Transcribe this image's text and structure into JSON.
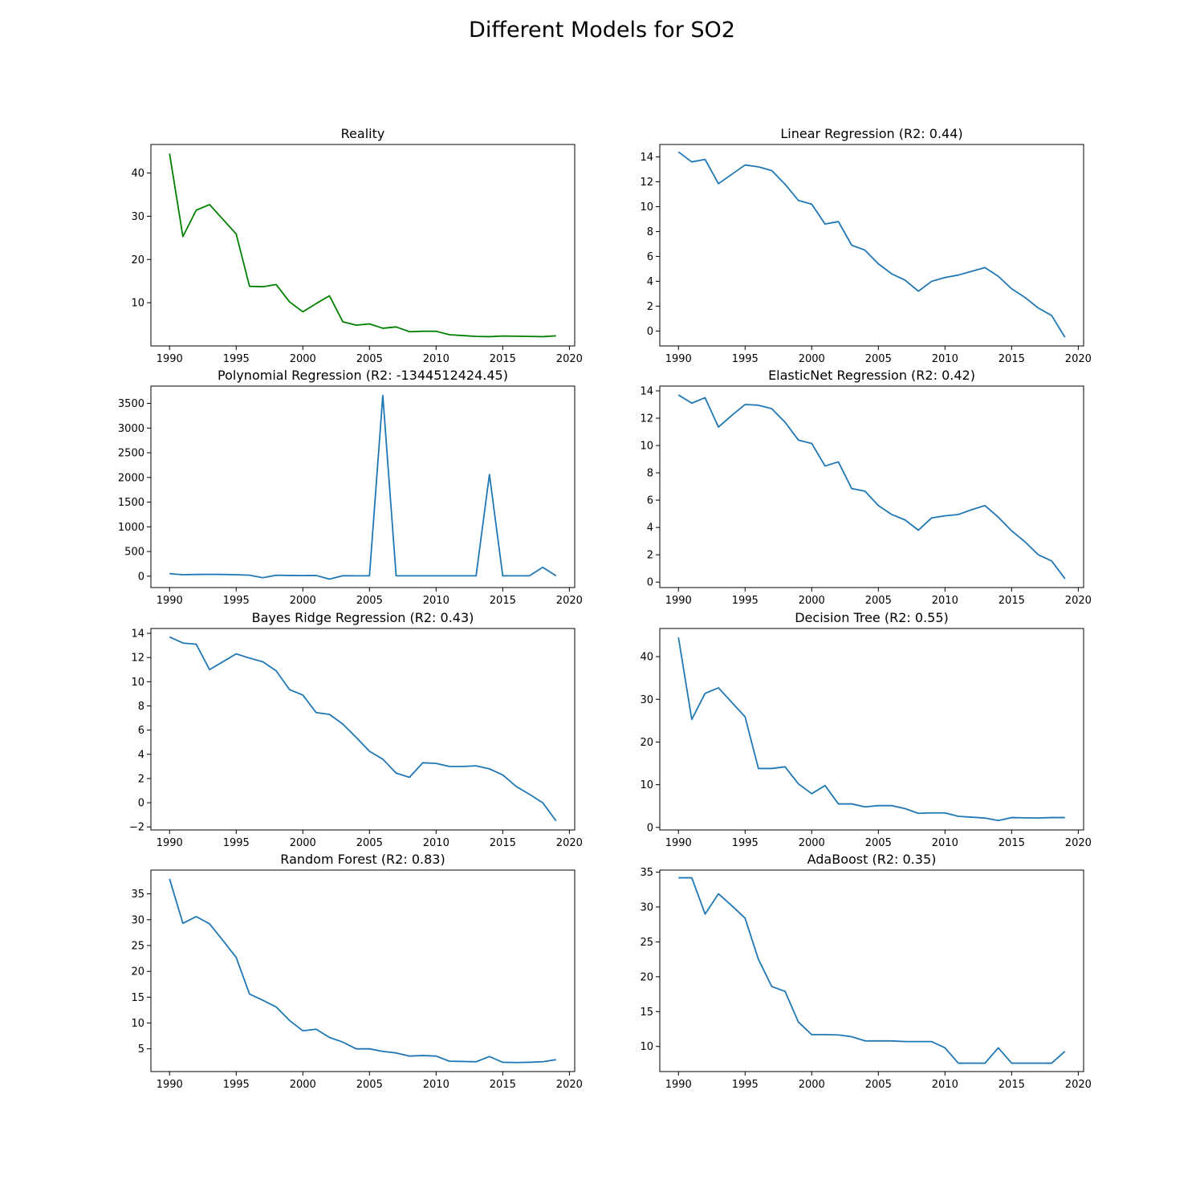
{
  "figure": {
    "title": "Different Models for SO2"
  },
  "chart_data": [
    {
      "type": "line",
      "title": "Reality",
      "color": "#008000",
      "x": [
        1990,
        1991,
        1992,
        1993,
        1994,
        1995,
        1996,
        1997,
        1998,
        1999,
        2000,
        2001,
        2002,
        2003,
        2004,
        2005,
        2006,
        2007,
        2008,
        2009,
        2010,
        2011,
        2012,
        2013,
        2014,
        2015,
        2016,
        2017,
        2018,
        2019
      ],
      "y": [
        44.5,
        25.3,
        31.4,
        32.7,
        29.3,
        25.9,
        13.8,
        13.7,
        14.2,
        10.2,
        7.9,
        9.8,
        11.6,
        5.6,
        4.8,
        5.1,
        4.1,
        4.4,
        3.3,
        3.4,
        3.4,
        2.6,
        2.4,
        2.2,
        2.15,
        2.3,
        2.25,
        2.2,
        2.15,
        2.35
      ],
      "xlim": [
        1988.6,
        2020.4
      ],
      "ylim": [
        0.0,
        46.6
      ],
      "xticks": [
        1990,
        1995,
        2000,
        2005,
        2010,
        2015,
        2020
      ],
      "yticks": [
        10,
        20,
        30,
        40
      ]
    },
    {
      "type": "line",
      "title": "Linear Regression (R2: 0.44)",
      "color": "#1f77b4",
      "x": [
        1990,
        1991,
        1992,
        1993,
        1994,
        1995,
        1996,
        1997,
        1998,
        1999,
        2000,
        2001,
        2002,
        2003,
        2004,
        2005,
        2006,
        2007,
        2008,
        2009,
        2010,
        2011,
        2012,
        2013,
        2014,
        2015,
        2016,
        2017,
        2018,
        2019
      ],
      "y": [
        14.4,
        13.6,
        13.8,
        11.85,
        12.6,
        13.35,
        13.2,
        12.9,
        11.8,
        10.5,
        10.2,
        8.6,
        8.8,
        6.9,
        6.5,
        5.4,
        4.6,
        4.1,
        3.2,
        4.0,
        4.3,
        4.5,
        4.8,
        5.1,
        4.4,
        3.4,
        2.7,
        1.85,
        1.25,
        -0.5
      ],
      "xlim": [
        1988.6,
        2020.4
      ],
      "ylim": [
        -1.2,
        15.0
      ],
      "xticks": [
        1990,
        1995,
        2000,
        2005,
        2010,
        2015,
        2020
      ],
      "yticks": [
        0,
        2,
        4,
        6,
        8,
        10,
        12,
        14
      ]
    },
    {
      "type": "line",
      "title": "Polynomial Regression (R2: -1344512424.45)",
      "color": "#1f77b4",
      "x": [
        1990,
        1991,
        1992,
        1993,
        1994,
        1995,
        1996,
        1997,
        1998,
        1999,
        2000,
        2001,
        2002,
        2003,
        2004,
        2005,
        2006,
        2007,
        2008,
        2009,
        2010,
        2011,
        2012,
        2013,
        2014,
        2015,
        2016,
        2017,
        2018,
        2019
      ],
      "y": [
        50,
        30,
        35,
        38,
        35,
        30,
        20,
        -30,
        20,
        15,
        12,
        15,
        -60,
        10,
        8,
        8,
        3660,
        8,
        8,
        8,
        8,
        8,
        8,
        8,
        2060,
        8,
        8,
        8,
        180,
        8
      ],
      "xlim": [
        1988.6,
        2020.4
      ],
      "ylim": [
        -230,
        3850
      ],
      "xticks": [
        1990,
        1995,
        2000,
        2005,
        2010,
        2015,
        2020
      ],
      "yticks": [
        0,
        500,
        1000,
        1500,
        2000,
        2500,
        3000,
        3500
      ]
    },
    {
      "type": "line",
      "title": "ElasticNet Regression (R2: 0.42)",
      "color": "#1f77b4",
      "x": [
        1990,
        1991,
        1992,
        1993,
        1994,
        1995,
        1996,
        1997,
        1998,
        1999,
        2000,
        2001,
        2002,
        2003,
        2004,
        2005,
        2006,
        2007,
        2008,
        2009,
        2010,
        2011,
        2012,
        2013,
        2014,
        2015,
        2016,
        2017,
        2018,
        2019
      ],
      "y": [
        13.7,
        13.1,
        13.5,
        11.35,
        12.2,
        13.0,
        12.95,
        12.7,
        11.7,
        10.4,
        10.15,
        8.5,
        8.8,
        6.85,
        6.65,
        5.6,
        4.95,
        4.55,
        3.8,
        4.7,
        4.85,
        4.95,
        5.3,
        5.6,
        4.75,
        3.75,
        2.95,
        2.0,
        1.55,
        0.25
      ],
      "xlim": [
        1988.6,
        2020.4
      ],
      "ylim": [
        -0.4,
        14.35
      ],
      "xticks": [
        1990,
        1995,
        2000,
        2005,
        2010,
        2015,
        2020
      ],
      "yticks": [
        0,
        2,
        4,
        6,
        8,
        10,
        12,
        14
      ]
    },
    {
      "type": "line",
      "title": "Bayes Ridge Regression (R2: 0.43)",
      "color": "#1f77b4",
      "x": [
        1990,
        1991,
        1992,
        1993,
        1994,
        1995,
        1996,
        1997,
        1998,
        1999,
        2000,
        2001,
        2002,
        2003,
        2004,
        2005,
        2006,
        2007,
        2008,
        2009,
        2010,
        2011,
        2012,
        2013,
        2014,
        2015,
        2016,
        2017,
        2018,
        2019
      ],
      "y": [
        13.7,
        13.2,
        13.1,
        11.0,
        11.65,
        12.3,
        11.95,
        11.65,
        10.9,
        9.35,
        8.9,
        7.45,
        7.3,
        6.5,
        5.4,
        4.25,
        3.6,
        2.45,
        2.1,
        3.3,
        3.25,
        3.0,
        3.0,
        3.05,
        2.8,
        2.3,
        1.35,
        0.7,
        0.0,
        -1.5
      ],
      "xlim": [
        1988.6,
        2020.4
      ],
      "ylim": [
        -2.25,
        14.4
      ],
      "xticks": [
        1990,
        1995,
        2000,
        2005,
        2010,
        2015,
        2020
      ],
      "yticks": [
        -2,
        0,
        2,
        4,
        6,
        8,
        10,
        12,
        14
      ]
    },
    {
      "type": "line",
      "title": "Decision Tree (R2: 0.55)",
      "color": "#1f77b4",
      "x": [
        1990,
        1991,
        1992,
        1993,
        1994,
        1995,
        1996,
        1997,
        1998,
        1999,
        2000,
        2001,
        2002,
        2003,
        2004,
        2005,
        2006,
        2007,
        2008,
        2009,
        2010,
        2011,
        2012,
        2013,
        2014,
        2015,
        2016,
        2017,
        2018,
        2019
      ],
      "y": [
        44.5,
        25.3,
        31.4,
        32.7,
        29.3,
        25.9,
        13.8,
        13.8,
        14.2,
        10.2,
        7.9,
        9.8,
        5.5,
        5.5,
        4.8,
        5.1,
        5.1,
        4.4,
        3.3,
        3.4,
        3.4,
        2.6,
        2.4,
        2.2,
        1.6,
        2.3,
        2.25,
        2.2,
        2.3,
        2.3
      ],
      "xlim": [
        1988.6,
        2020.4
      ],
      "ylim": [
        -0.6,
        46.6
      ],
      "xticks": [
        1990,
        1995,
        2000,
        2005,
        2010,
        2015,
        2020
      ],
      "yticks": [
        0,
        10,
        20,
        30,
        40
      ]
    },
    {
      "type": "line",
      "title": "Random Forest (R2: 0.83)",
      "color": "#1f77b4",
      "x": [
        1990,
        1991,
        1992,
        1993,
        1994,
        1995,
        1996,
        1997,
        1998,
        1999,
        2000,
        2001,
        2002,
        2003,
        2004,
        2005,
        2006,
        2007,
        2008,
        2009,
        2010,
        2011,
        2012,
        2013,
        2014,
        2015,
        2016,
        2017,
        2018,
        2019
      ],
      "y": [
        37.9,
        29.3,
        30.6,
        29.2,
        26.0,
        22.7,
        15.6,
        14.4,
        13.1,
        10.5,
        8.5,
        8.8,
        7.2,
        6.3,
        5.0,
        5.0,
        4.5,
        4.2,
        3.6,
        3.7,
        3.6,
        2.6,
        2.55,
        2.5,
        3.5,
        2.4,
        2.35,
        2.4,
        2.5,
        2.9
      ],
      "xlim": [
        1988.6,
        2020.4
      ],
      "ylim": [
        0.6,
        39.6
      ],
      "xticks": [
        1990,
        1995,
        2000,
        2005,
        2010,
        2015,
        2020
      ],
      "yticks": [
        5,
        10,
        15,
        20,
        25,
        30,
        35
      ]
    },
    {
      "type": "line",
      "title": "AdaBoost (R2: 0.35)",
      "color": "#1f77b4",
      "x": [
        1990,
        1991,
        1992,
        1993,
        1994,
        1995,
        1996,
        1997,
        1998,
        1999,
        2000,
        2001,
        2002,
        2003,
        2004,
        2005,
        2006,
        2007,
        2008,
        2009,
        2010,
        2011,
        2012,
        2013,
        2014,
        2015,
        2016,
        2017,
        2018,
        2019
      ],
      "y": [
        34.2,
        34.2,
        29.0,
        31.9,
        30.2,
        28.4,
        22.5,
        18.6,
        17.9,
        13.5,
        11.7,
        11.7,
        11.65,
        11.4,
        10.8,
        10.8,
        10.8,
        10.7,
        10.7,
        10.7,
        9.8,
        7.6,
        7.6,
        7.6,
        9.8,
        7.6,
        7.6,
        7.6,
        7.6,
        9.3
      ],
      "xlim": [
        1988.6,
        2020.4
      ],
      "ylim": [
        6.4,
        35.3
      ],
      "xticks": [
        1990,
        1995,
        2000,
        2005,
        2010,
        2015,
        2020
      ],
      "yticks": [
        10,
        15,
        20,
        25,
        30,
        35
      ]
    }
  ]
}
